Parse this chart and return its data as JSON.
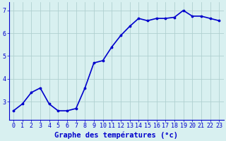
{
  "x": [
    0,
    1,
    2,
    3,
    4,
    5,
    6,
    7,
    8,
    9,
    10,
    11,
    12,
    13,
    14,
    15,
    16,
    17,
    18,
    19,
    20,
    21,
    22,
    23
  ],
  "y": [
    2.6,
    2.9,
    3.4,
    3.6,
    2.9,
    2.6,
    2.6,
    2.7,
    3.6,
    4.7,
    4.8,
    5.4,
    5.9,
    6.3,
    6.65,
    6.55,
    6.65,
    6.65,
    6.7,
    7.0,
    6.75,
    6.75,
    6.65,
    6.55
  ],
  "line_color": "#0000cc",
  "marker": ".",
  "marker_size": 3.5,
  "bg_color": "#d8f0f0",
  "grid_color": "#b0d0d0",
  "xlabel": "Graphe des températures (°c)",
  "xlabel_color": "#0000cc",
  "tick_color": "#0000cc",
  "xlim": [
    -0.5,
    23.5
  ],
  "ylim": [
    2.2,
    7.35
  ],
  "yticks": [
    3,
    4,
    5,
    6,
    7
  ],
  "xticks": [
    0,
    1,
    2,
    3,
    4,
    5,
    6,
    7,
    8,
    9,
    10,
    11,
    12,
    13,
    14,
    15,
    16,
    17,
    18,
    19,
    20,
    21,
    22,
    23
  ],
  "xtick_labels": [
    "0",
    "1",
    "2",
    "3",
    "4",
    "5",
    "6",
    "7",
    "8",
    "9",
    "10",
    "11",
    "12",
    "13",
    "14",
    "15",
    "16",
    "17",
    "18",
    "19",
    "20",
    "21",
    "22",
    "23"
  ],
  "spine_color": "#0000cc",
  "xlabel_fontsize": 7.5,
  "tick_fontsize": 6.0,
  "line_width": 1.2
}
